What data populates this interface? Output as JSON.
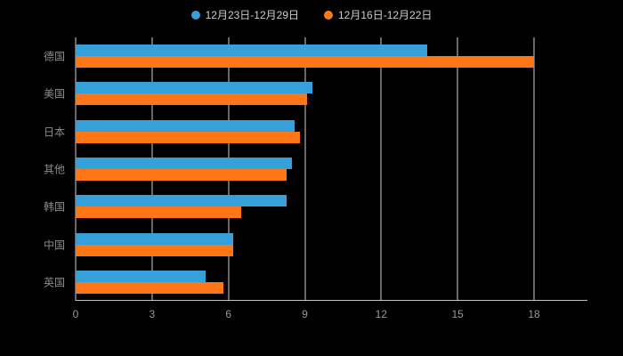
{
  "chart_data": {
    "type": "bar",
    "orientation": "horizontal",
    "title": "",
    "xlabel": "",
    "ylabel": "",
    "categories": [
      "德国",
      "美国",
      "日本",
      "其他",
      "韩国",
      "中国",
      "英国"
    ],
    "series": [
      {
        "name": "12月23日-12月29日",
        "color": "#36A0DA",
        "values": [
          13.8,
          9.3,
          8.6,
          8.5,
          8.3,
          6.2,
          5.1
        ]
      },
      {
        "name": "12月16日-12月22日",
        "color": "#FF7617",
        "values": [
          18,
          9.1,
          8.8,
          8.3,
          6.5,
          6.2,
          5.8
        ]
      }
    ],
    "xticks": [
      0,
      3,
      6,
      9,
      12,
      15,
      18
    ],
    "xlim": [
      0,
      18
    ],
    "grid": true,
    "legend_position": "top"
  },
  "colors": {
    "background": "#000000",
    "grid_line": "#d0d0d0",
    "axis_label": "#999999",
    "category_label": "#8a8a8a",
    "legend_text": "#cccccc"
  }
}
